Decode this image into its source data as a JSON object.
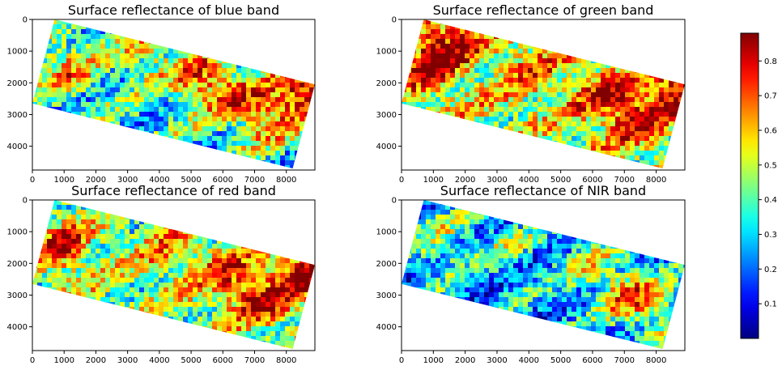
{
  "chart_data": [
    {
      "type": "heatmap",
      "title": "Surface reflectance of blue band",
      "xlim": [
        0,
        8900
      ],
      "ylim": [
        4750,
        0
      ],
      "xticks": [
        0,
        1000,
        2000,
        3000,
        4000,
        5000,
        6000,
        7000,
        8000
      ],
      "yticks": [
        0,
        1000,
        2000,
        3000,
        4000
      ],
      "scene_corners": [
        [
          700,
          0
        ],
        [
          8900,
          2050
        ],
        [
          8200,
          4700
        ],
        [
          0,
          2650
        ]
      ],
      "level": 0.35,
      "hotspots": [
        [
          1000,
          1500,
          0.6
        ],
        [
          3500,
          1000,
          0.55
        ],
        [
          5200,
          1800,
          0.65
        ],
        [
          6200,
          2300,
          0.6
        ],
        [
          7300,
          3000,
          0.65
        ],
        [
          8500,
          2150,
          0.85
        ]
      ]
    },
    {
      "type": "heatmap",
      "title": "Surface reflectance of green band",
      "xlim": [
        0,
        8900
      ],
      "ylim": [
        4750,
        0
      ],
      "xticks": [
        0,
        1000,
        2000,
        3000,
        4000,
        5000,
        6000,
        7000,
        8000
      ],
      "yticks": [
        0,
        1000,
        2000,
        3000,
        4000
      ],
      "scene_corners": [
        [
          700,
          0
        ],
        [
          8900,
          2050
        ],
        [
          8200,
          4700
        ],
        [
          0,
          2650
        ]
      ],
      "level": 0.5,
      "hotspots": [
        [
          700,
          1300,
          0.8
        ],
        [
          1500,
          600,
          0.75
        ],
        [
          4000,
          1500,
          0.65
        ],
        [
          6200,
          2300,
          0.7
        ],
        [
          7200,
          3000,
          0.75
        ],
        [
          8500,
          2100,
          0.85
        ]
      ]
    },
    {
      "type": "heatmap",
      "title": "Surface reflectance of red band",
      "xlim": [
        0,
        8900
      ],
      "ylim": [
        4750,
        0
      ],
      "xticks": [
        0,
        1000,
        2000,
        3000,
        4000,
        5000,
        6000,
        7000,
        8000
      ],
      "yticks": [
        0,
        1000,
        2000,
        3000,
        4000
      ],
      "scene_corners": [
        [
          700,
          0
        ],
        [
          8900,
          2050
        ],
        [
          8200,
          4700
        ],
        [
          0,
          2650
        ]
      ],
      "level": 0.45,
      "hotspots": [
        [
          800,
          1400,
          0.75
        ],
        [
          4200,
          1600,
          0.6
        ],
        [
          6000,
          2300,
          0.7
        ],
        [
          7200,
          3100,
          0.75
        ],
        [
          8600,
          2200,
          0.88
        ]
      ]
    },
    {
      "type": "heatmap",
      "title": "Surface reflectance of NIR band",
      "xlim": [
        0,
        8900
      ],
      "ylim": [
        4750,
        0
      ],
      "xticks": [
        0,
        1000,
        2000,
        3000,
        4000,
        5000,
        6000,
        7000,
        8000
      ],
      "yticks": [
        0,
        1000,
        2000,
        3000,
        4000
      ],
      "scene_corners": [
        [
          700,
          0
        ],
        [
          8900,
          2050
        ],
        [
          8200,
          4700
        ],
        [
          0,
          2650
        ]
      ],
      "level": 0.25,
      "hotspots": [
        [
          1200,
          1300,
          0.45
        ],
        [
          3200,
          1300,
          0.4
        ],
        [
          5800,
          2000,
          0.45
        ],
        [
          7000,
          2900,
          0.6
        ],
        [
          8100,
          3400,
          0.5
        ]
      ]
    }
  ],
  "colorbar": {
    "colormap": "jet",
    "range": [
      0.0,
      0.88
    ],
    "ticks": [
      "0.1",
      "0.2",
      "0.3",
      "0.4",
      "0.5",
      "0.6",
      "0.7",
      "0.8"
    ],
    "tick_values": [
      0.1,
      0.2,
      0.3,
      0.4,
      0.5,
      0.6,
      0.7,
      0.8
    ]
  }
}
